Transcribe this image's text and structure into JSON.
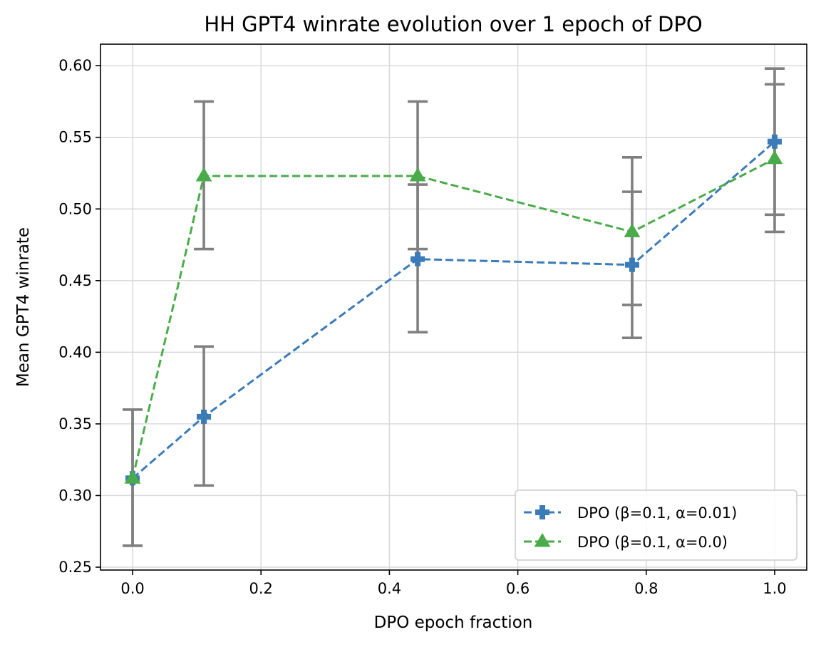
{
  "chart_data": {
    "type": "line",
    "title": "HH GPT4 winrate evolution over 1 epoch of DPO",
    "xlabel": "DPO epoch fraction",
    "ylabel": "Mean GPT4 winrate",
    "xlim": [
      -0.05,
      1.05
    ],
    "ylim": [
      0.248,
      0.615
    ],
    "xticks": [
      0.0,
      0.2,
      0.4,
      0.6,
      0.8,
      1.0
    ],
    "xtick_labels": [
      "0.0",
      "0.2",
      "0.4",
      "0.6",
      "0.8",
      "1.0"
    ],
    "yticks": [
      0.25,
      0.3,
      0.35,
      0.4,
      0.45,
      0.5,
      0.55,
      0.6
    ],
    "ytick_labels": [
      "0.25",
      "0.30",
      "0.35",
      "0.40",
      "0.45",
      "0.50",
      "0.55",
      "0.60"
    ],
    "grid": true,
    "legend_position": "lower-right",
    "series": [
      {
        "name": "DPO (β=0.1, α=0.01)",
        "color": "#3a7bb8",
        "marker": "plus",
        "linestyle": "dashed",
        "x": [
          0.0,
          0.111,
          0.444,
          0.778,
          1.0
        ],
        "y": [
          0.312,
          0.355,
          0.465,
          0.461,
          0.547
        ],
        "err_low": [
          0.265,
          0.307,
          0.414,
          0.41,
          0.496
        ],
        "err_high": [
          0.36,
          0.404,
          0.517,
          0.512,
          0.598
        ]
      },
      {
        "name": "DPO (β=0.1, α=0.0)",
        "color": "#4aab4a",
        "marker": "triangle",
        "linestyle": "dashed",
        "x": [
          0.0,
          0.111,
          0.444,
          0.778,
          1.0
        ],
        "y": [
          0.312,
          0.523,
          0.523,
          0.484,
          0.535
        ],
        "err_low": [
          0.265,
          0.472,
          0.472,
          0.433,
          0.484
        ],
        "err_high": [
          0.36,
          0.575,
          0.575,
          0.536,
          0.587
        ]
      }
    ]
  }
}
